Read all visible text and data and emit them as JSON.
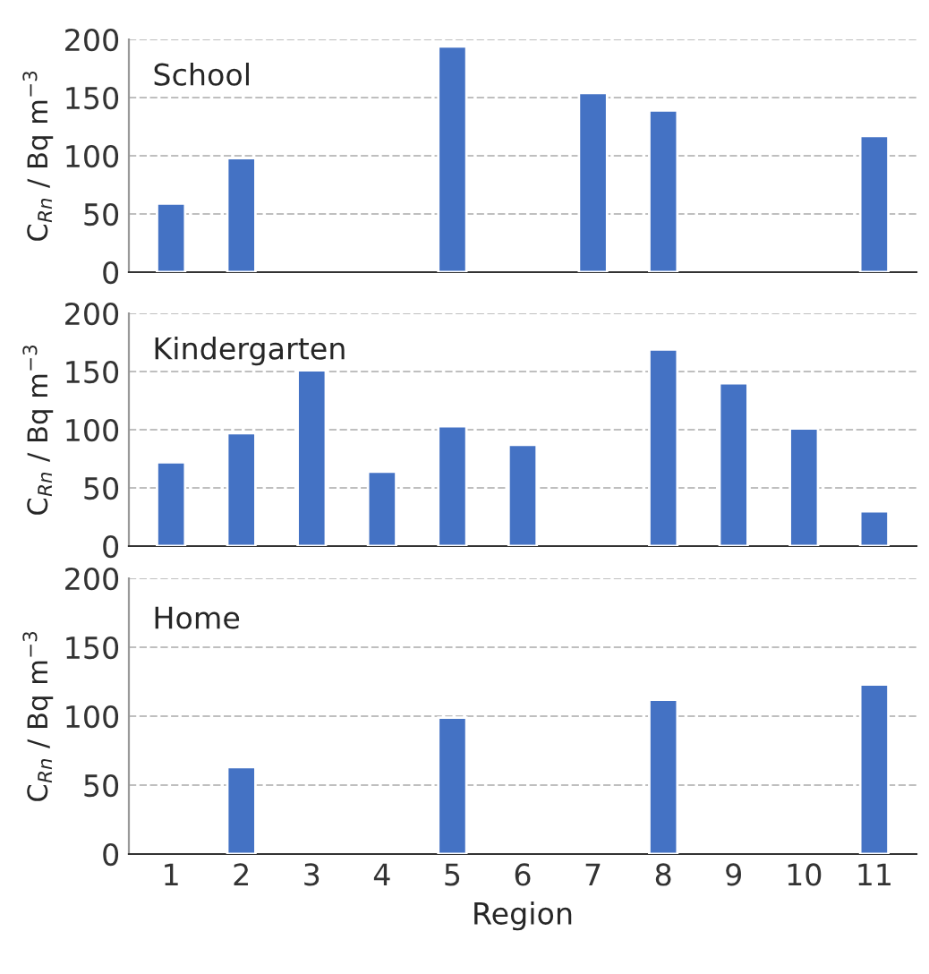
{
  "chart_data": [
    {
      "type": "bar",
      "categories": [
        "1",
        "2",
        "3",
        "4",
        "5",
        "6",
        "7",
        "8",
        "9",
        "10",
        "11"
      ],
      "values": [
        59,
        98,
        null,
        null,
        194,
        null,
        154,
        139,
        null,
        null,
        117
      ],
      "color": "#4472c4",
      "ylabel": "C$_{Rn}$ / Bq m$^{−3}$",
      "ylim": [
        0,
        200
      ],
      "yticks": [
        0,
        50,
        100,
        150,
        200
      ],
      "grid": "y",
      "tick_labels": "y",
      "annotations": [
        "School"
      ]
    },
    {
      "type": "bar",
      "categories": [
        "1",
        "2",
        "3",
        "4",
        "5",
        "6",
        "7",
        "8",
        "9",
        "10",
        "11"
      ],
      "values": [
        72,
        97,
        151,
        64,
        103,
        87,
        null,
        169,
        140,
        101,
        30
      ],
      "color": "#4472c4",
      "ylabel": "C$_{Rn}$ / Bq m$^{−3}$",
      "ylim": [
        0,
        200
      ],
      "yticks": [
        0,
        50,
        100,
        150,
        200
      ],
      "grid": "y",
      "tick_labels": "y",
      "annotations": [
        "Kindergarten"
      ]
    },
    {
      "type": "bar",
      "categories": [
        "1",
        "2",
        "3",
        "4",
        "5",
        "6",
        "7",
        "8",
        "9",
        "10",
        "11"
      ],
      "values": [
        null,
        63,
        null,
        null,
        99,
        null,
        null,
        112,
        null,
        null,
        123
      ],
      "color": "#4472c4",
      "xlabel": "Region",
      "ylabel": "C$_{Rn}$ / Bq m$^{−3}$",
      "ylim": [
        0,
        200
      ],
      "yticks": [
        0,
        50,
        100,
        150,
        200
      ],
      "grid": "y",
      "annotations": [
        "Home"
      ]
    }
  ]
}
